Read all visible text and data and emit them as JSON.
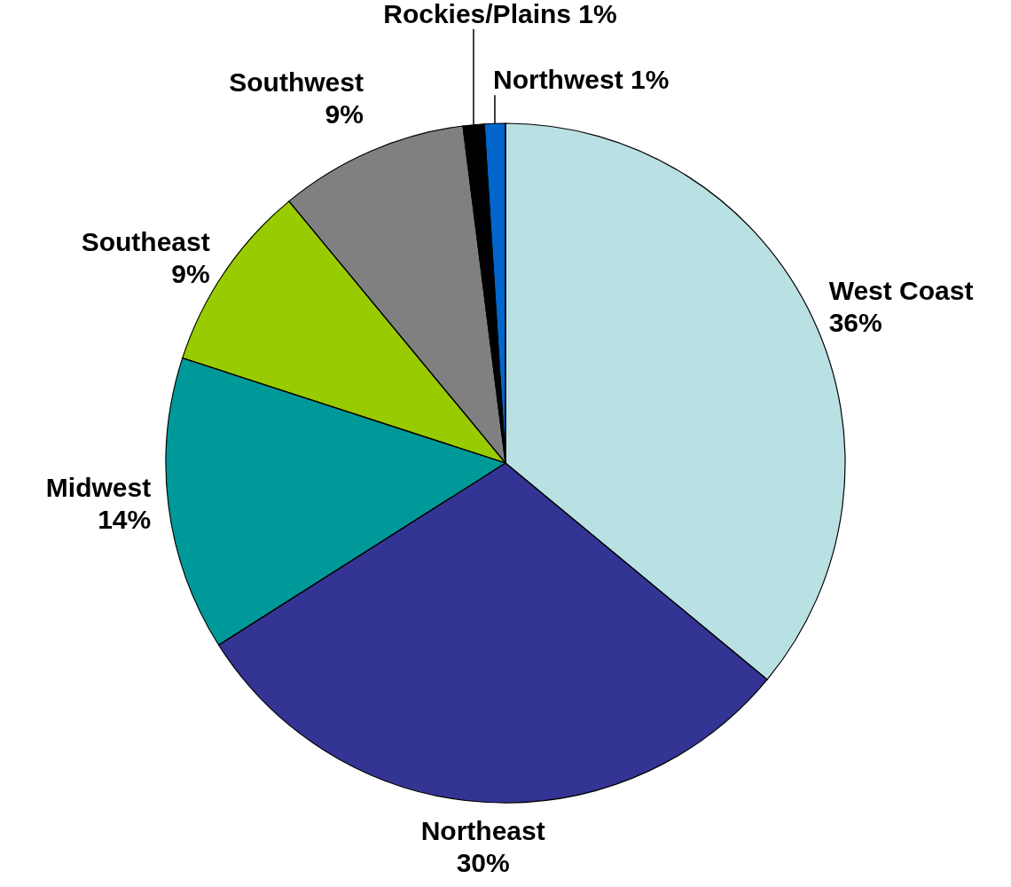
{
  "chart_data": {
    "type": "pie",
    "categories": [
      "West Coast",
      "Northeast",
      "Midwest",
      "Southeast",
      "Southwest",
      "Rockies/Plains",
      "Northwest"
    ],
    "values": [
      36,
      30,
      14,
      9,
      9,
      1,
      1
    ],
    "value_labels": [
      "36%",
      "30%",
      "14%",
      "9%",
      "9%",
      "1%",
      "1%"
    ],
    "colors": [
      "#b9e0e3",
      "#343495",
      "#009999",
      "#99cc00",
      "#808080",
      "#000000",
      "#0066cc"
    ],
    "legend": false
  }
}
